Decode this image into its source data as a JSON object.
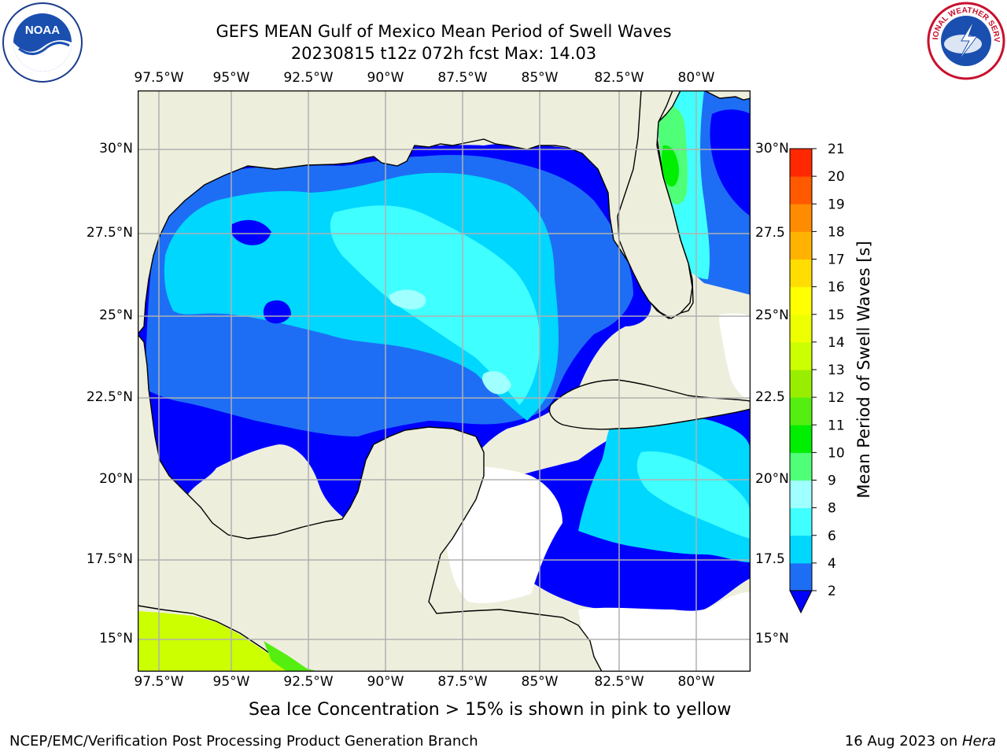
{
  "header": {
    "title_line1": "GEFS MEAN Gulf of Mexico Mean Period of Swell Waves",
    "title_line2": "20230815 t12z 072h fcst   Max: 14.03"
  },
  "logos": {
    "left": {
      "icon": "noaa-logo-icon",
      "text": "NOAA"
    },
    "right": {
      "icon": "national-weather-service-logo-icon",
      "text": "NATIONAL WEATHER SERVICE"
    }
  },
  "map": {
    "lon_ticks": [
      "97.5°W",
      "95°W",
      "92.5°W",
      "90°W",
      "87.5°W",
      "85°W",
      "82.5°W",
      "80°W"
    ],
    "lat_ticks_left": [
      "30°N",
      "27.5°N",
      "25°N",
      "22.5°N",
      "20°N",
      "17.5°N",
      "15°N"
    ],
    "lat_ticks_right": [
      "30°N",
      "27.5",
      "25°N",
      "22.5",
      "20°N",
      "17.5",
      "15°N"
    ],
    "colors": {
      "land": "#eeeedd",
      "ocean_missing": "#ffffff",
      "grid": "#b0b0b0",
      "coast": "#000000"
    }
  },
  "colorbar": {
    "label": "Mean Period of Swell Waves [s]",
    "ticks": [
      "2",
      "4",
      "6",
      "8",
      "9",
      "10",
      "11",
      "12",
      "13",
      "14",
      "15",
      "16",
      "17",
      "18",
      "19",
      "20",
      "21"
    ],
    "colors": [
      "#1e6ef5",
      "#00d7ff",
      "#40ffff",
      "#a0ffff",
      "#50ff78",
      "#00ee00",
      "#55ee11",
      "#99ee00",
      "#ccff00",
      "#eeff00",
      "#ffff00",
      "#ffdd00",
      "#ffb300",
      "#ff8c00",
      "#ff5a00",
      "#ff2800",
      "#ff0000"
    ],
    "under_color": "#0000ff"
  },
  "note": "Sea Ice Concentration > 15% is shown in pink to yellow",
  "footer": {
    "left": "NCEP/EMC/Verification Post Processing Product Generation Branch",
    "date": "16 Aug 2023 on ",
    "machine": "Hera"
  }
}
